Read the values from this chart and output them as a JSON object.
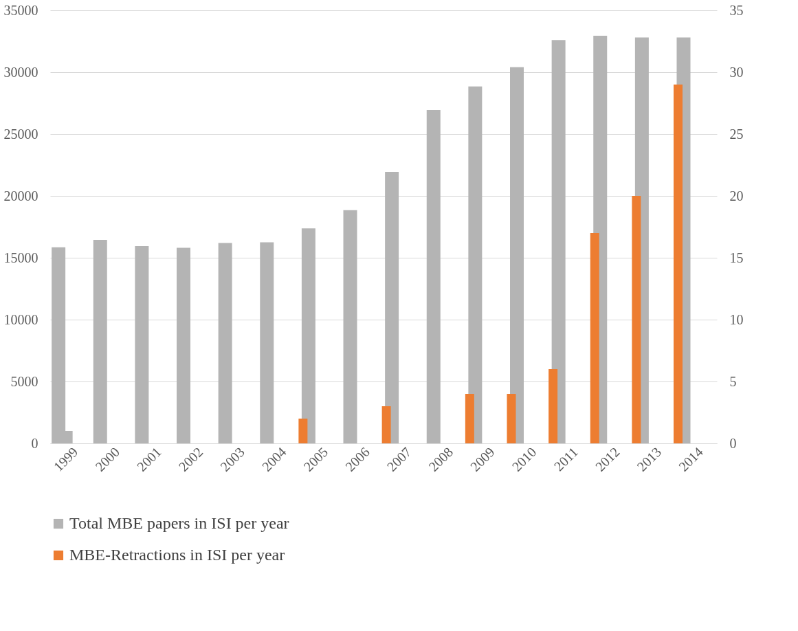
{
  "chart_data": {
    "type": "bar",
    "categories": [
      "1999",
      "2000",
      "2001",
      "2002",
      "2003",
      "2004",
      "2005",
      "2006",
      "2007",
      "2008",
      "2009",
      "2010",
      "2011",
      "2012",
      "2013",
      "2014"
    ],
    "series": [
      {
        "name": "Total MBE papers in ISI per year",
        "color": "#b4b4b4",
        "values": [
          15850,
          16450,
          15950,
          15800,
          16200,
          16250,
          17380,
          18850,
          21950,
          26950,
          28850,
          30400,
          32600,
          32950,
          32800,
          32800
        ]
      },
      {
        "name": "MBE-Retractions in ISI per year",
        "color": "#ed7d31",
        "axis": "y2",
        "colors": [
          "#b4b4b4",
          "#ed7d31",
          "#ed7d31",
          "#ed7d31",
          "#ed7d31",
          "#ed7d31",
          "#ed7d31",
          "#ed7d31",
          "#ed7d31",
          "#ed7d31",
          "#ed7d31",
          "#ed7d31",
          "#ed7d31",
          "#ed7d31",
          "#ed7d31",
          "#ed7d31"
        ],
        "values": [
          1,
          0,
          0,
          0,
          0,
          0,
          2,
          0,
          3,
          0,
          4,
          4,
          6,
          17,
          20,
          29
        ]
      }
    ],
    "ylim": [
      0,
      35000
    ],
    "yticks": [
      0,
      5000,
      10000,
      15000,
      20000,
      25000,
      30000,
      35000
    ],
    "y2lim": [
      0,
      35
    ],
    "y2ticks": [
      0,
      5,
      10,
      15,
      20,
      25,
      30,
      35
    ],
    "grid": "y",
    "legend": "bottom"
  }
}
